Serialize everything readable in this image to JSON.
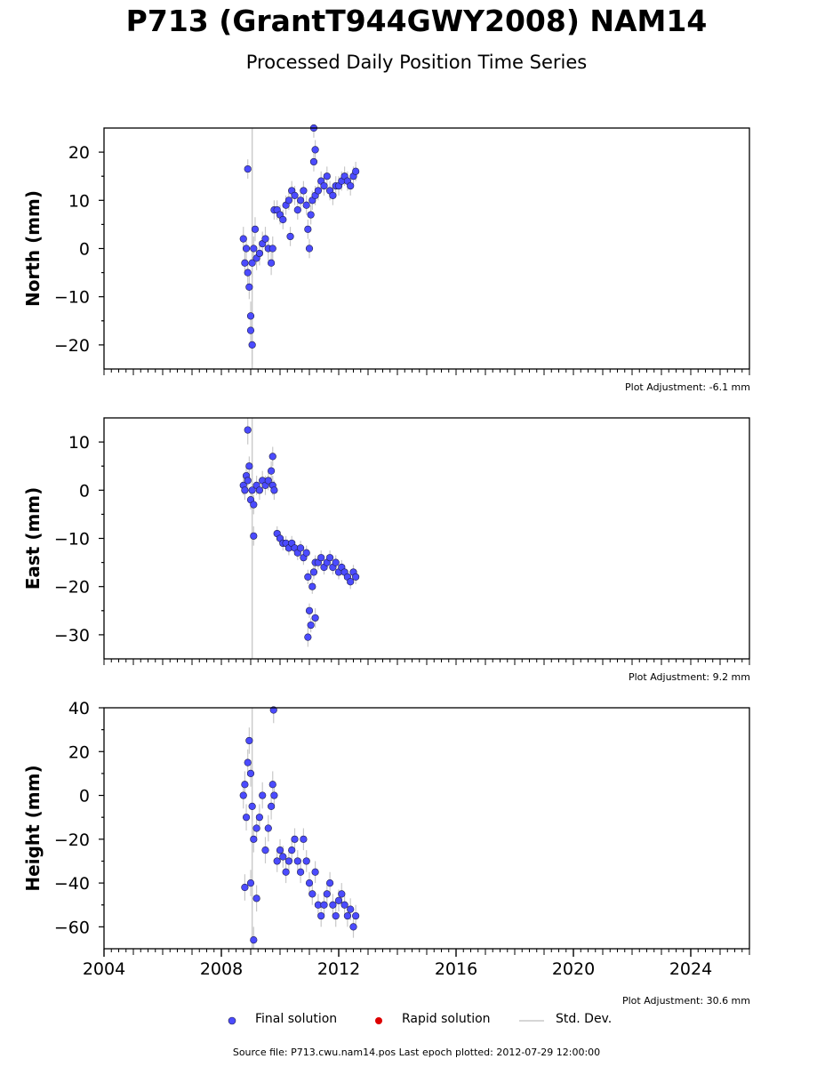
{
  "title": "P713 (GrantT944GWY2008) NAM14",
  "subtitle": "Processed Daily Position Time Series",
  "legend": {
    "final": "Final solution",
    "rapid": "Rapid solution",
    "std": "Std. Dev."
  },
  "source_text": "Source file: P713.cwu.nam14.pos  Last epoch plotted: 2012-07-29 12:00:00",
  "colors": {
    "final": "#4b4bff",
    "rapid": "#dd0000",
    "stddev": "#c8c8c8",
    "vline": "#cccccc"
  },
  "chart_data": [
    {
      "type": "scatter",
      "ylabel": "North (mm)",
      "plot_adjustment": "Plot Adjustment: -6.1 mm",
      "xlim": [
        2004,
        2026
      ],
      "ylim": [
        -25,
        25
      ],
      "yticks": [
        -20,
        -10,
        0,
        10,
        20
      ],
      "yticklabels": [
        "−20",
        "−10",
        "0",
        "10",
        "20"
      ],
      "vline_x": 2009.05,
      "series": [
        {
          "name": "Final solution",
          "x": [
            2008.75,
            2008.8,
            2008.85,
            2008.9,
            2008.95,
            2009.0,
            2009.05,
            2009.1,
            2009.15,
            2009.2,
            2009.3,
            2009.4,
            2009.5,
            2009.6,
            2009.7,
            2009.75,
            2009.8,
            2009.9,
            2010.0,
            2010.1,
            2010.2,
            2010.3,
            2010.4,
            2010.5,
            2010.6,
            2010.7,
            2010.8,
            2010.9,
            2010.95,
            2011.0,
            2011.05,
            2011.1,
            2011.2,
            2011.3,
            2011.4,
            2011.5,
            2011.6,
            2011.7,
            2011.8,
            2011.9,
            2012.0,
            2012.1,
            2012.2,
            2012.3,
            2012.4,
            2012.5,
            2012.58,
            2008.9,
            2009.05,
            2009.0,
            2011.15,
            2011.2,
            2011.15,
            2010.35
          ],
          "y": [
            2,
            -3,
            0,
            -5,
            -8,
            -14,
            -3,
            0,
            4,
            -2,
            -1,
            1,
            2,
            0,
            -3,
            0,
            8,
            8,
            7,
            6,
            9,
            10,
            12,
            11,
            8,
            10,
            12,
            9,
            4,
            0,
            7,
            10,
            11,
            12,
            14,
            13,
            15,
            12,
            11,
            13,
            13,
            14,
            15,
            14,
            13,
            15,
            16,
            16.5,
            -20,
            -17,
            25,
            20.5,
            18,
            2.5
          ],
          "std_dev": [
            2.5,
            2.5,
            2.5,
            2.5,
            2.5,
            3,
            3,
            2.5,
            2.5,
            2.5,
            2.5,
            2.5,
            2.5,
            2.5,
            2.5,
            2.5,
            2,
            2,
            2,
            2,
            2,
            2,
            2,
            2,
            2,
            2,
            2,
            2,
            2,
            2,
            2,
            2,
            2,
            2,
            2,
            2,
            2,
            2,
            2,
            2,
            2,
            2,
            2,
            2,
            2,
            2,
            2,
            2,
            4,
            3,
            2,
            2,
            2,
            2
          ]
        }
      ]
    },
    {
      "type": "scatter",
      "ylabel": "East (mm)",
      "plot_adjustment": "Plot Adjustment: 9.2 mm",
      "xlim": [
        2004,
        2026
      ],
      "ylim": [
        -35,
        15
      ],
      "yticks": [
        -30,
        -20,
        -10,
        0,
        10
      ],
      "yticklabels": [
        "−30",
        "−20",
        "−10",
        "0",
        "10"
      ],
      "vline_x": 2009.05,
      "series": [
        {
          "name": "Final solution",
          "x": [
            2008.75,
            2008.8,
            2008.85,
            2008.9,
            2008.95,
            2009.0,
            2009.05,
            2009.1,
            2009.2,
            2009.3,
            2009.4,
            2009.5,
            2009.6,
            2009.7,
            2009.75,
            2009.8,
            2009.9,
            2010.0,
            2010.1,
            2010.2,
            2010.3,
            2010.4,
            2010.5,
            2010.6,
            2010.7,
            2010.8,
            2010.9,
            2010.95,
            2011.0,
            2011.05,
            2011.1,
            2011.15,
            2011.2,
            2011.3,
            2011.4,
            2011.5,
            2011.6,
            2011.7,
            2011.8,
            2011.9,
            2012.0,
            2012.1,
            2012.2,
            2012.3,
            2012.4,
            2012.5,
            2012.58,
            2008.9,
            2009.1,
            2010.95,
            2011.2,
            2009.75
          ],
          "y": [
            1,
            0,
            3,
            2,
            5,
            -2,
            0,
            -3,
            1,
            0,
            2,
            1,
            2,
            4,
            1,
            0,
            -9,
            -10,
            -11,
            -11,
            -12,
            -11,
            -12,
            -13,
            -12,
            -14,
            -13,
            -18,
            -25,
            -28,
            -20,
            -17,
            -15,
            -15,
            -14,
            -16,
            -15,
            -14,
            -16,
            -15,
            -17,
            -16,
            -17,
            -18,
            -19,
            -17,
            -18,
            12.5,
            -9.5,
            -30.5,
            -26.5,
            7
          ],
          "std_dev": [
            2,
            2,
            2,
            2,
            2,
            2,
            2.5,
            2,
            2,
            2,
            2,
            2,
            2,
            2,
            2,
            2,
            1.5,
            1.5,
            1.5,
            1.5,
            1.5,
            1.5,
            1.5,
            1.5,
            1.5,
            1.5,
            1.5,
            1.5,
            1.5,
            1.5,
            1.5,
            1.5,
            1.5,
            1.5,
            1.5,
            1.5,
            1.5,
            1.5,
            1.5,
            1.5,
            1.5,
            1.5,
            1.5,
            1.5,
            1.5,
            1.5,
            1.5,
            3,
            2,
            2,
            2,
            2
          ]
        }
      ]
    },
    {
      "type": "scatter",
      "ylabel": "Height (mm)",
      "plot_adjustment": "Plot Adjustment: 30.6 mm",
      "xlim": [
        2004,
        2026
      ],
      "ylim": [
        -70,
        40
      ],
      "yticks": [
        -60,
        -40,
        -20,
        0,
        20,
        40
      ],
      "yticklabels": [
        "−60",
        "−40",
        "−20",
        "0",
        "20",
        "40"
      ],
      "xticks": [
        2004,
        2008,
        2012,
        2016,
        2020,
        2024
      ],
      "xticklabels": [
        "2004",
        "2008",
        "2012",
        "2016",
        "2020",
        "2024"
      ],
      "vline_x": 2009.05,
      "series": [
        {
          "name": "Final solution",
          "x": [
            2008.75,
            2008.8,
            2008.85,
            2008.9,
            2008.95,
            2009.0,
            2009.05,
            2009.1,
            2009.2,
            2009.3,
            2009.4,
            2009.5,
            2009.6,
            2009.7,
            2009.75,
            2009.8,
            2009.9,
            2010.0,
            2010.1,
            2010.2,
            2010.3,
            2010.4,
            2010.5,
            2010.6,
            2010.7,
            2010.8,
            2010.9,
            2011.0,
            2011.1,
            2011.2,
            2011.3,
            2011.4,
            2011.5,
            2011.6,
            2011.7,
            2011.8,
            2011.9,
            2012.0,
            2012.1,
            2012.2,
            2012.3,
            2012.4,
            2012.5,
            2012.58,
            2009.78,
            2009.1,
            2008.8,
            2009.0,
            2009.2
          ],
          "y": [
            0,
            5,
            -10,
            15,
            25,
            10,
            -5,
            -20,
            -15,
            -10,
            0,
            -25,
            -15,
            -5,
            5,
            0,
            -30,
            -25,
            -28,
            -35,
            -30,
            -25,
            -20,
            -30,
            -35,
            -20,
            -30,
            -40,
            -45,
            -35,
            -50,
            -55,
            -50,
            -45,
            -40,
            -50,
            -55,
            -48,
            -45,
            -50,
            -55,
            -52,
            -60,
            -55,
            39,
            -66,
            -42,
            -40,
            -47
          ],
          "std_dev": [
            6,
            6,
            6,
            6,
            6,
            6,
            7,
            6,
            6,
            6,
            6,
            6,
            6,
            6,
            6,
            6,
            5,
            5,
            5,
            5,
            5,
            5,
            5,
            5,
            5,
            5,
            5,
            5,
            5,
            5,
            5,
            5,
            5,
            5,
            5,
            5,
            5,
            5,
            5,
            5,
            5,
            5,
            5,
            5,
            6,
            6,
            6,
            6,
            6
          ]
        }
      ]
    }
  ]
}
